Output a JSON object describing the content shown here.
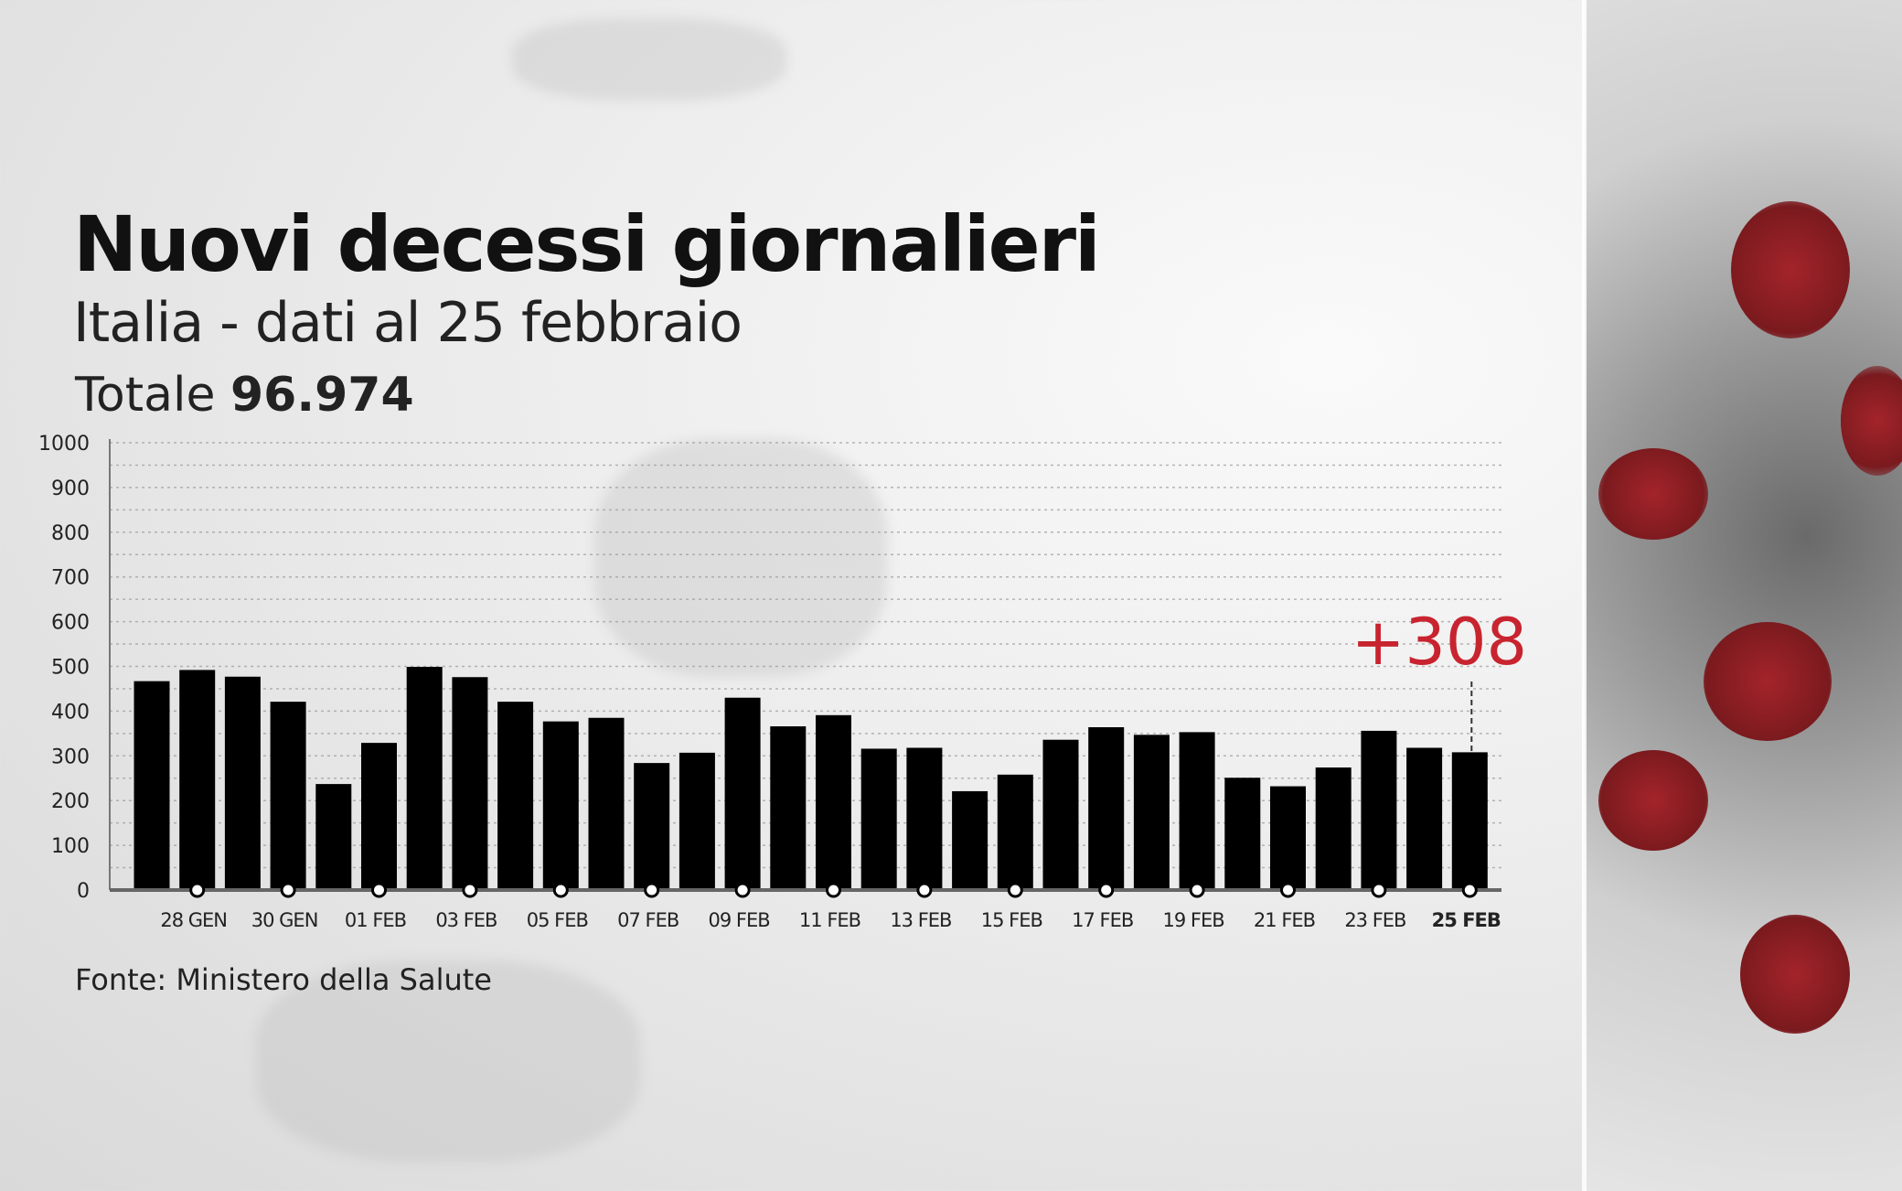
{
  "header": {
    "title": "Nuovi decessi giornalieri",
    "subtitle": "Italia - dati al 25 febbraio",
    "total_label": "Totale",
    "total_value": "96.974"
  },
  "source": "Fonte: Ministero della Salute",
  "colors": {
    "bar": "#000000",
    "highlight": "#c8242f",
    "grid": "#9a9a9a"
  },
  "chart_data": {
    "type": "bar",
    "title": "Nuovi decessi giornalieri",
    "categories": [
      "27 GEN",
      "28 GEN",
      "29 GEN",
      "30 GEN",
      "31 GEN",
      "01 FEB",
      "02 FEB",
      "03 FEB",
      "04 FEB",
      "05 FEB",
      "06 FEB",
      "07 FEB",
      "08 FEB",
      "09 FEB",
      "10 FEB",
      "11 FEB",
      "12 FEB",
      "13 FEB",
      "14 FEB",
      "15 FEB",
      "16 FEB",
      "17 FEB",
      "18 FEB",
      "19 FEB",
      "20 FEB",
      "21 FEB",
      "22 FEB",
      "23 FEB",
      "24 FEB",
      "25 FEB"
    ],
    "values": [
      467,
      492,
      477,
      421,
      237,
      329,
      499,
      476,
      421,
      377,
      385,
      284,
      307,
      430,
      366,
      391,
      316,
      318,
      221,
      258,
      336,
      364,
      347,
      353,
      251,
      232,
      274,
      356,
      318,
      308
    ],
    "tick_labels": [
      "28 GEN",
      "30 GEN",
      "01 FEB",
      "03 FEB",
      "05 FEB",
      "07 FEB",
      "09 FEB",
      "11 FEB",
      "13 FEB",
      "15 FEB",
      "17 FEB",
      "19 FEB",
      "21 FEB",
      "23 FEB",
      "25  FEB"
    ],
    "yticks": [
      "0",
      "100",
      "200",
      "300",
      "400",
      "500",
      "600",
      "700",
      "800",
      "900",
      "1000"
    ],
    "ylim": [
      0,
      1000
    ],
    "grid": true,
    "annotation": {
      "text": "+308",
      "category": "25 FEB"
    }
  }
}
